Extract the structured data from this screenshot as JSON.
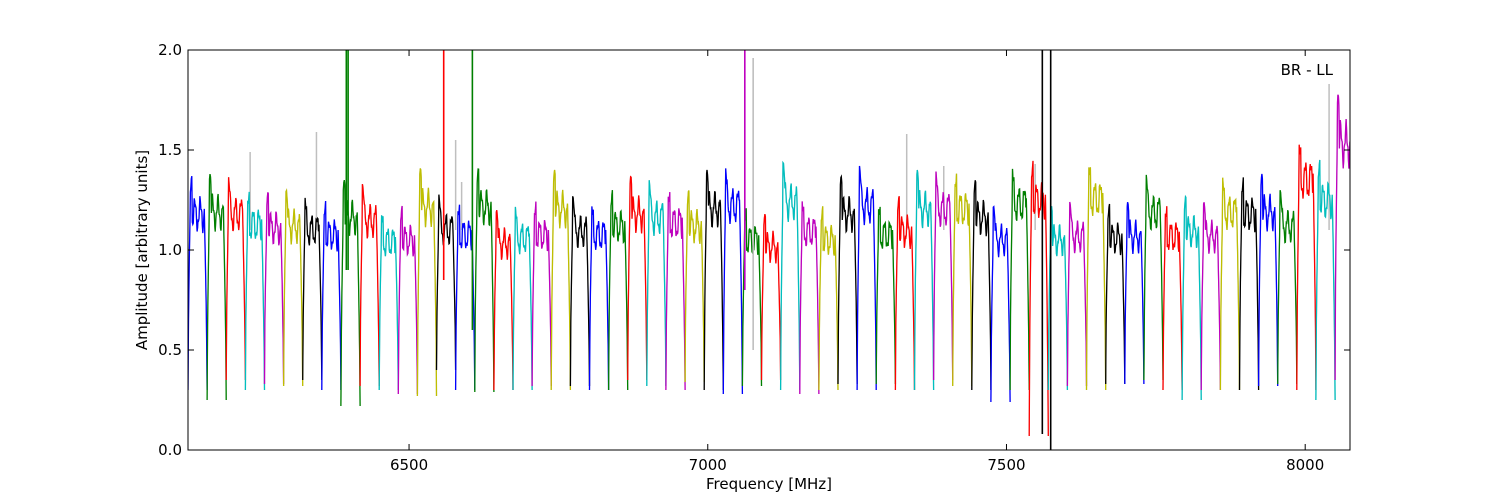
{
  "chart_data": {
    "type": "line",
    "title": "",
    "annotation": "BR - LL",
    "xlabel": "Frequency [MHz]",
    "ylabel": "Amplitude [arbitrary units]",
    "xlim": [
      6130,
      8075
    ],
    "ylim": [
      0.0,
      2.0
    ],
    "x_ticks": [
      6500,
      7000,
      7500,
      8000
    ],
    "x_tick_labels": [
      "6500",
      "7000",
      "7500",
      "8000"
    ],
    "y_ticks": [
      0.0,
      0.5,
      1.0,
      1.5,
      2.0
    ],
    "y_tick_labels": [
      "0.0",
      "0.5",
      "1.0",
      "1.5",
      "2.0"
    ],
    "grid": false,
    "background_series_color": "#bfbfbf",
    "color_cycle": [
      "#0000ff",
      "#008000",
      "#ff0000",
      "#00bfbf",
      "#bf00bf",
      "#bfbf00",
      "#000000"
    ],
    "band_width_mhz": 32,
    "band_starts_mhz": [
      6130,
      6162,
      6194,
      6226,
      6258,
      6290,
      6322,
      6354,
      6386,
      6418,
      6450,
      6482,
      6514,
      6546,
      6578,
      6610,
      6642,
      6674,
      6706,
      6738,
      6770,
      6802,
      6834,
      6866,
      6898,
      6930,
      6962,
      6994,
      7026,
      7058,
      7090,
      7122,
      7154,
      7186,
      7218,
      7250,
      7282,
      7314,
      7346,
      7378,
      7410,
      7442,
      7474,
      7506,
      7538,
      7570,
      7602,
      7634,
      7666,
      7698,
      7730,
      7762,
      7794,
      7826,
      7858,
      7890,
      7922,
      7954,
      7986,
      8018,
      8050
    ],
    "band_peak_amplitudes": [
      1.37,
      1.38,
      1.37,
      1.31,
      1.29,
      1.3,
      1.28,
      1.25,
      1.35,
      1.33,
      1.21,
      1.22,
      1.41,
      1.28,
      1.25,
      1.41,
      1.2,
      1.23,
      1.25,
      1.4,
      1.27,
      1.25,
      1.3,
      1.37,
      1.35,
      1.32,
      1.3,
      1.4,
      1.42,
      1.22,
      1.18,
      1.44,
      1.27,
      1.22,
      1.37,
      1.42,
      1.25,
      1.27,
      1.4,
      1.4,
      1.4,
      1.35,
      1.22,
      1.43,
      1.45,
      1.22,
      1.24,
      1.46,
      1.23,
      1.24,
      1.38,
      1.24,
      1.27,
      1.24,
      1.38,
      1.37,
      1.38,
      1.3,
      1.57,
      1.45,
      1.78
    ],
    "band_min_amplitudes": [
      0.3,
      0.25,
      0.35,
      0.3,
      0.33,
      0.32,
      0.35,
      0.3,
      0.22,
      0.32,
      0.3,
      0.28,
      0.27,
      0.4,
      0.3,
      0.29,
      0.3,
      0.3,
      0.32,
      0.3,
      0.32,
      0.3,
      0.3,
      0.35,
      0.32,
      0.3,
      0.34,
      0.3,
      0.28,
      0.32,
      0.35,
      0.3,
      0.28,
      0.3,
      0.33,
      0.3,
      0.33,
      0.3,
      0.3,
      0.35,
      0.32,
      0.3,
      0.24,
      0.3,
      0.07,
      0.3,
      0.32,
      0.3,
      0.33,
      0.33,
      0.35,
      0.3,
      0.25,
      0.3,
      0.3,
      0.3,
      0.32,
      0.33,
      0.3,
      0.25,
      0.35
    ],
    "spikes": [
      {
        "x": 6395,
        "y_from": 0.9,
        "y_to": 2.0,
        "series_color": "#008000"
      },
      {
        "x": 6398,
        "y_from": 0.9,
        "y_to": 2.0,
        "series_color": "#008000"
      },
      {
        "x": 6558,
        "y_from": 0.85,
        "y_to": 2.0,
        "series_color": "#ff0000"
      },
      {
        "x": 6606,
        "y_from": 0.6,
        "y_to": 2.0,
        "series_color": "#008000"
      },
      {
        "x": 7062,
        "y_from": 0.8,
        "y_to": 2.0,
        "series_color": "#bf00bf"
      },
      {
        "x": 7076,
        "y_from": 0.5,
        "y_to": 1.96,
        "series_color": "#bfbfbf"
      },
      {
        "x": 7560,
        "y_from": 0.08,
        "y_to": 2.0,
        "series_color": "#000000"
      },
      {
        "x": 7574,
        "y_from": 0.0,
        "y_to": 2.0,
        "series_color": "#000000"
      }
    ],
    "background_spikes": [
      {
        "x": 6234,
        "y": 1.49
      },
      {
        "x": 6345,
        "y": 1.59
      },
      {
        "x": 6578,
        "y": 1.55
      },
      {
        "x": 6588,
        "y": 1.34
      },
      {
        "x": 7333,
        "y": 1.58
      },
      {
        "x": 7395,
        "y": 1.42
      },
      {
        "x": 7548,
        "y": 1.43
      },
      {
        "x": 8040,
        "y": 1.83
      }
    ]
  }
}
